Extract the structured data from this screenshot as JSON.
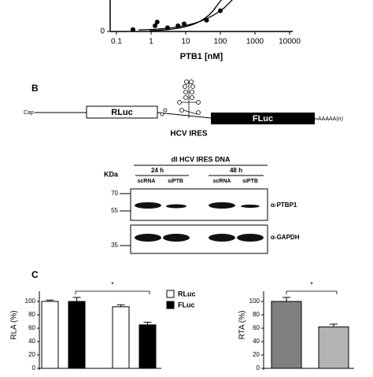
{
  "panel_a": {
    "x_axis_label": "PTB1 [nM]",
    "log_x": true,
    "xlim": [
      0.1,
      10000
    ],
    "xticks": [
      0.1,
      1,
      10,
      100,
      1000,
      10000
    ],
    "ylim": [
      0,
      1
    ],
    "yticks": [
      0
    ],
    "series": [
      {
        "marker": "circle",
        "x": [
          0.3,
          1.3,
          1.5,
          3,
          6,
          9,
          40,
          100
        ],
        "y": [
          0.05,
          0.15,
          0.25,
          0.1,
          0.15,
          0.2,
          0.3,
          0.55
        ]
      }
    ]
  },
  "panel_b": {
    "label": "B",
    "cap": "Cap",
    "rluc": "RLuc",
    "fluc": "FLuc",
    "poly_a": "AAAAA(n)",
    "ires": "HCV IRES"
  },
  "blot": {
    "title": "dl HCV IRES DNA",
    "kda": "KDa",
    "timepoints": [
      "24 h",
      "48 h"
    ],
    "lanes": [
      "scRNA",
      "siPTB",
      "scRNA",
      "siPTB"
    ],
    "markers": [
      70,
      55,
      35
    ],
    "antibodies": [
      "α-PTBP1",
      "α-GAPDH"
    ]
  },
  "panel_c": {
    "label": "C",
    "left": {
      "ylabel": "RLA (%)",
      "ylim": [
        0,
        110
      ],
      "yticks": [
        0,
        20,
        40,
        60,
        80,
        100
      ],
      "significance": "*",
      "series": [
        {
          "name": "RLuc",
          "color": "#ffffff",
          "values": [
            100,
            92
          ],
          "errors": [
            2,
            3
          ]
        },
        {
          "name": "FLuc",
          "color": "#000000",
          "values": [
            100,
            65
          ],
          "errors": [
            6,
            4
          ]
        }
      ]
    },
    "right": {
      "ylabel": "RTA (%)",
      "ylim": [
        0,
        110
      ],
      "yticks": [
        0,
        20,
        40,
        60,
        80,
        100
      ],
      "significance": "*",
      "values": [
        100,
        62
      ],
      "errors": [
        6,
        4
      ],
      "colors": [
        "#7f7f7f",
        "#b3b3b3"
      ]
    }
  }
}
